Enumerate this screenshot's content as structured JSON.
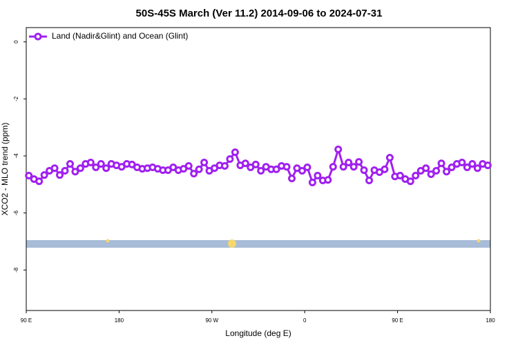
{
  "chart_data": {
    "type": "line",
    "title": "50S-45S March (Ver 11.2)   2014-09-06 to 2024-07-31",
    "x_label": "Longitude (deg E)",
    "y_label": "XCO2 - MLO trend (ppm)",
    "xlim": [
      90,
      540
    ],
    "xticks": [
      {
        "value": 90,
        "label": "90 E"
      },
      180,
      {
        "value": 270,
        "label": "90 W"
      },
      {
        "value": 360,
        "label": "0"
      },
      {
        "value": 450,
        "label": "90 E"
      },
      {
        "value": 540,
        "label": "180"
      }
    ],
    "ylim": [
      0.5,
      -9.42
    ],
    "yticks": [
      0,
      -2,
      -4,
      -6,
      -8
    ],
    "legend": "top-left",
    "x": [
      92.5,
      97.5,
      102.5,
      107.5,
      112.5,
      117.5,
      122.5,
      127.5,
      132.5,
      137.5,
      142.5,
      147.5,
      152.5,
      157.5,
      162.5,
      167.5,
      172.5,
      177.5,
      182.5,
      187.5,
      192.5,
      197.5,
      202.5,
      207.5,
      212.5,
      217.5,
      222.5,
      227.5,
      232.5,
      237.5,
      242.5,
      247.5,
      252.5,
      257.5,
      262.5,
      267.5,
      272.5,
      277.5,
      282.5,
      287.5,
      292.5,
      297.5,
      302.5,
      307.5,
      312.5,
      317.5,
      322.5,
      327.5,
      332.5,
      337.5,
      342.5,
      347.5,
      352.5,
      357.5,
      362.5,
      367.5,
      372.5,
      377.5,
      382.5,
      387.5,
      392.5,
      397.5,
      402.5,
      407.5,
      412.5,
      417.5,
      422.5,
      427.5,
      432.5,
      437.5,
      442.5,
      447.5,
      452.5,
      457.5,
      462.5,
      467.5,
      472.5,
      477.5,
      482.5,
      487.5,
      492.5,
      497.5,
      502.5,
      507.5,
      512.5,
      517.5,
      522.5,
      527.5,
      532.5,
      537.5
    ],
    "series": [
      {
        "name": "Land (Nadir&Glint) and Ocean (Glint)",
        "color": "#a020f0",
        "values": [
          -4.69,
          -4.81,
          -4.89,
          -4.67,
          -4.52,
          -4.43,
          -4.67,
          -4.52,
          -4.28,
          -4.55,
          -4.43,
          -4.28,
          -4.23,
          -4.4,
          -4.28,
          -4.43,
          -4.28,
          -4.33,
          -4.38,
          -4.28,
          -4.3,
          -4.4,
          -4.45,
          -4.43,
          -4.4,
          -4.45,
          -4.5,
          -4.5,
          -4.4,
          -4.5,
          -4.45,
          -4.35,
          -4.62,
          -4.47,
          -4.23,
          -4.52,
          -4.43,
          -4.33,
          -4.35,
          -4.11,
          -3.87,
          -4.33,
          -4.26,
          -4.4,
          -4.3,
          -4.52,
          -4.38,
          -4.47,
          -4.47,
          -4.35,
          -4.38,
          -4.79,
          -4.43,
          -4.52,
          -4.4,
          -4.93,
          -4.69,
          -4.86,
          -4.84,
          -4.38,
          -3.77,
          -4.38,
          -4.23,
          -4.38,
          -4.21,
          -4.5,
          -4.86,
          -4.5,
          -4.57,
          -4.47,
          -4.06,
          -4.72,
          -4.69,
          -4.81,
          -4.89,
          -4.69,
          -4.52,
          -4.43,
          -4.64,
          -4.52,
          -4.26,
          -4.55,
          -4.4,
          -4.28,
          -4.23,
          -4.4,
          -4.28,
          -4.43,
          -4.28,
          -4.33
        ]
      }
    ]
  }
}
